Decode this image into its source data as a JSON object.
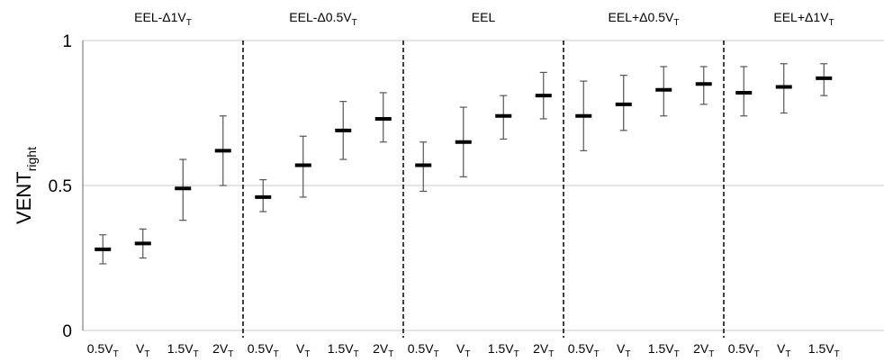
{
  "chart_data": {
    "type": "scatter",
    "ylabel": {
      "main": "VENT",
      "sub": "right"
    },
    "ylim": [
      0,
      1
    ],
    "y_ticks": [
      "0",
      "0.5",
      "1"
    ],
    "grid": "horizontal",
    "groups": [
      {
        "label": {
          "main": "EEL-Δ1V",
          "sub": "T"
        },
        "points": [
          {
            "x": {
              "main": "0.5V",
              "sub": "T"
            },
            "mean": 0.28,
            "low": 0.23,
            "high": 0.33
          },
          {
            "x": {
              "main": "V",
              "sub": "T"
            },
            "mean": 0.3,
            "low": 0.25,
            "high": 0.35
          },
          {
            "x": {
              "main": "1.5V",
              "sub": "T"
            },
            "mean": 0.49,
            "low": 0.38,
            "high": 0.59
          },
          {
            "x": {
              "main": "2V",
              "sub": "T"
            },
            "mean": 0.62,
            "low": 0.5,
            "high": 0.74
          }
        ]
      },
      {
        "label": {
          "main": "EEL-Δ0.5V",
          "sub": "T"
        },
        "points": [
          {
            "x": {
              "main": "0.5V",
              "sub": "T"
            },
            "mean": 0.46,
            "low": 0.41,
            "high": 0.52
          },
          {
            "x": {
              "main": "V",
              "sub": "T"
            },
            "mean": 0.57,
            "low": 0.46,
            "high": 0.67
          },
          {
            "x": {
              "main": "1.5V",
              "sub": "T"
            },
            "mean": 0.69,
            "low": 0.59,
            "high": 0.79
          },
          {
            "x": {
              "main": "2V",
              "sub": "T"
            },
            "mean": 0.73,
            "low": 0.65,
            "high": 0.82
          }
        ]
      },
      {
        "label": {
          "main": "EEL",
          "sub": ""
        },
        "points": [
          {
            "x": {
              "main": "0.5V",
              "sub": "T"
            },
            "mean": 0.57,
            "low": 0.48,
            "high": 0.65
          },
          {
            "x": {
              "main": "V",
              "sub": "T"
            },
            "mean": 0.65,
            "low": 0.53,
            "high": 0.77
          },
          {
            "x": {
              "main": "1.5V",
              "sub": "T"
            },
            "mean": 0.74,
            "low": 0.66,
            "high": 0.81
          },
          {
            "x": {
              "main": "2V",
              "sub": "T"
            },
            "mean": 0.81,
            "low": 0.73,
            "high": 0.89
          }
        ]
      },
      {
        "label": {
          "main": "EEL+Δ0.5V",
          "sub": "T"
        },
        "points": [
          {
            "x": {
              "main": "0.5V",
              "sub": "T"
            },
            "mean": 0.74,
            "low": 0.62,
            "high": 0.86
          },
          {
            "x": {
              "main": "V",
              "sub": "T"
            },
            "mean": 0.78,
            "low": 0.69,
            "high": 0.88
          },
          {
            "x": {
              "main": "1.5V",
              "sub": "T"
            },
            "mean": 0.83,
            "low": 0.74,
            "high": 0.91
          },
          {
            "x": {
              "main": "2V",
              "sub": "T"
            },
            "mean": 0.85,
            "low": 0.78,
            "high": 0.91
          }
        ]
      },
      {
        "label": {
          "main": "EEL+Δ1V",
          "sub": "T"
        },
        "points": [
          {
            "x": {
              "main": "0.5V",
              "sub": "T"
            },
            "mean": 0.82,
            "low": 0.74,
            "high": 0.91
          },
          {
            "x": {
              "main": "V",
              "sub": "T"
            },
            "mean": 0.84,
            "low": 0.75,
            "high": 0.92
          },
          {
            "x": {
              "main": "1.5V",
              "sub": "T"
            },
            "mean": 0.87,
            "low": 0.81,
            "high": 0.92
          }
        ]
      }
    ]
  }
}
